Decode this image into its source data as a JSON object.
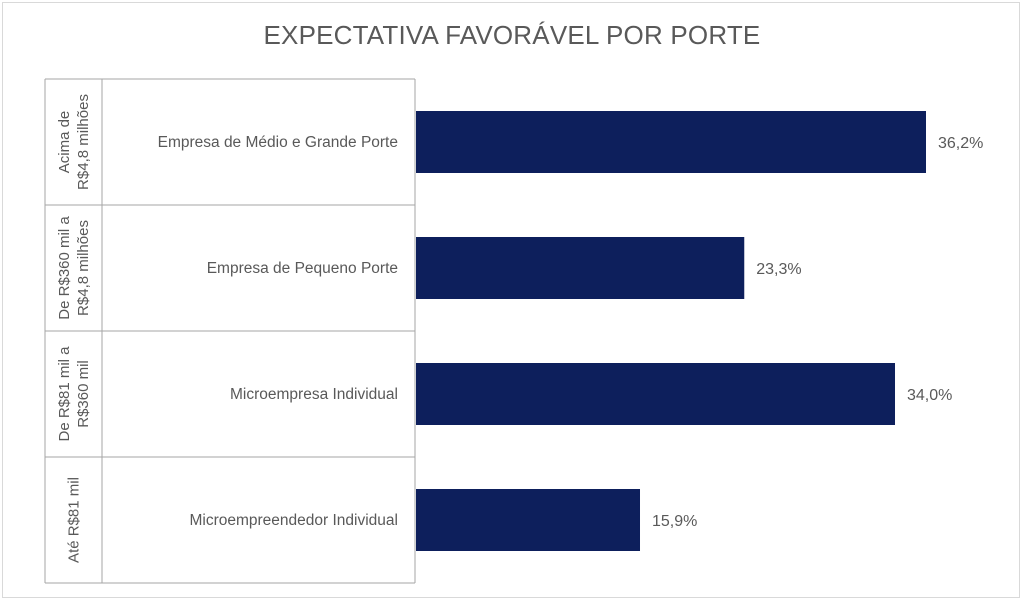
{
  "chart_data": {
    "type": "bar",
    "orientation": "horizontal",
    "title": "EXPECTATIVA FAVORÁVEL POR PORTE",
    "groups": [
      {
        "label_lines": [
          "Acima de",
          "R$4,8 milhões"
        ]
      },
      {
        "label_lines": [
          "De R$360 mil a",
          "R$4,8 milhões"
        ]
      },
      {
        "label_lines": [
          "De R$81 mil a",
          "R$360 mil"
        ]
      },
      {
        "label_lines": [
          "Até R$81 mil"
        ]
      }
    ],
    "categories": [
      "Empresa de Médio e Grande Porte",
      "Empresa de Pequeno Porte",
      "Microempresa Individual",
      "Microempreendedor Individual"
    ],
    "values": [
      36.2,
      23.3,
      34.0,
      15.9
    ],
    "data_labels": [
      "36,2%",
      "23,3%",
      "34,0%",
      "15,9%"
    ],
    "xlim": [
      0,
      36.2
    ],
    "bar_color": "#0d1f5c",
    "grid": false,
    "legend": "none"
  }
}
